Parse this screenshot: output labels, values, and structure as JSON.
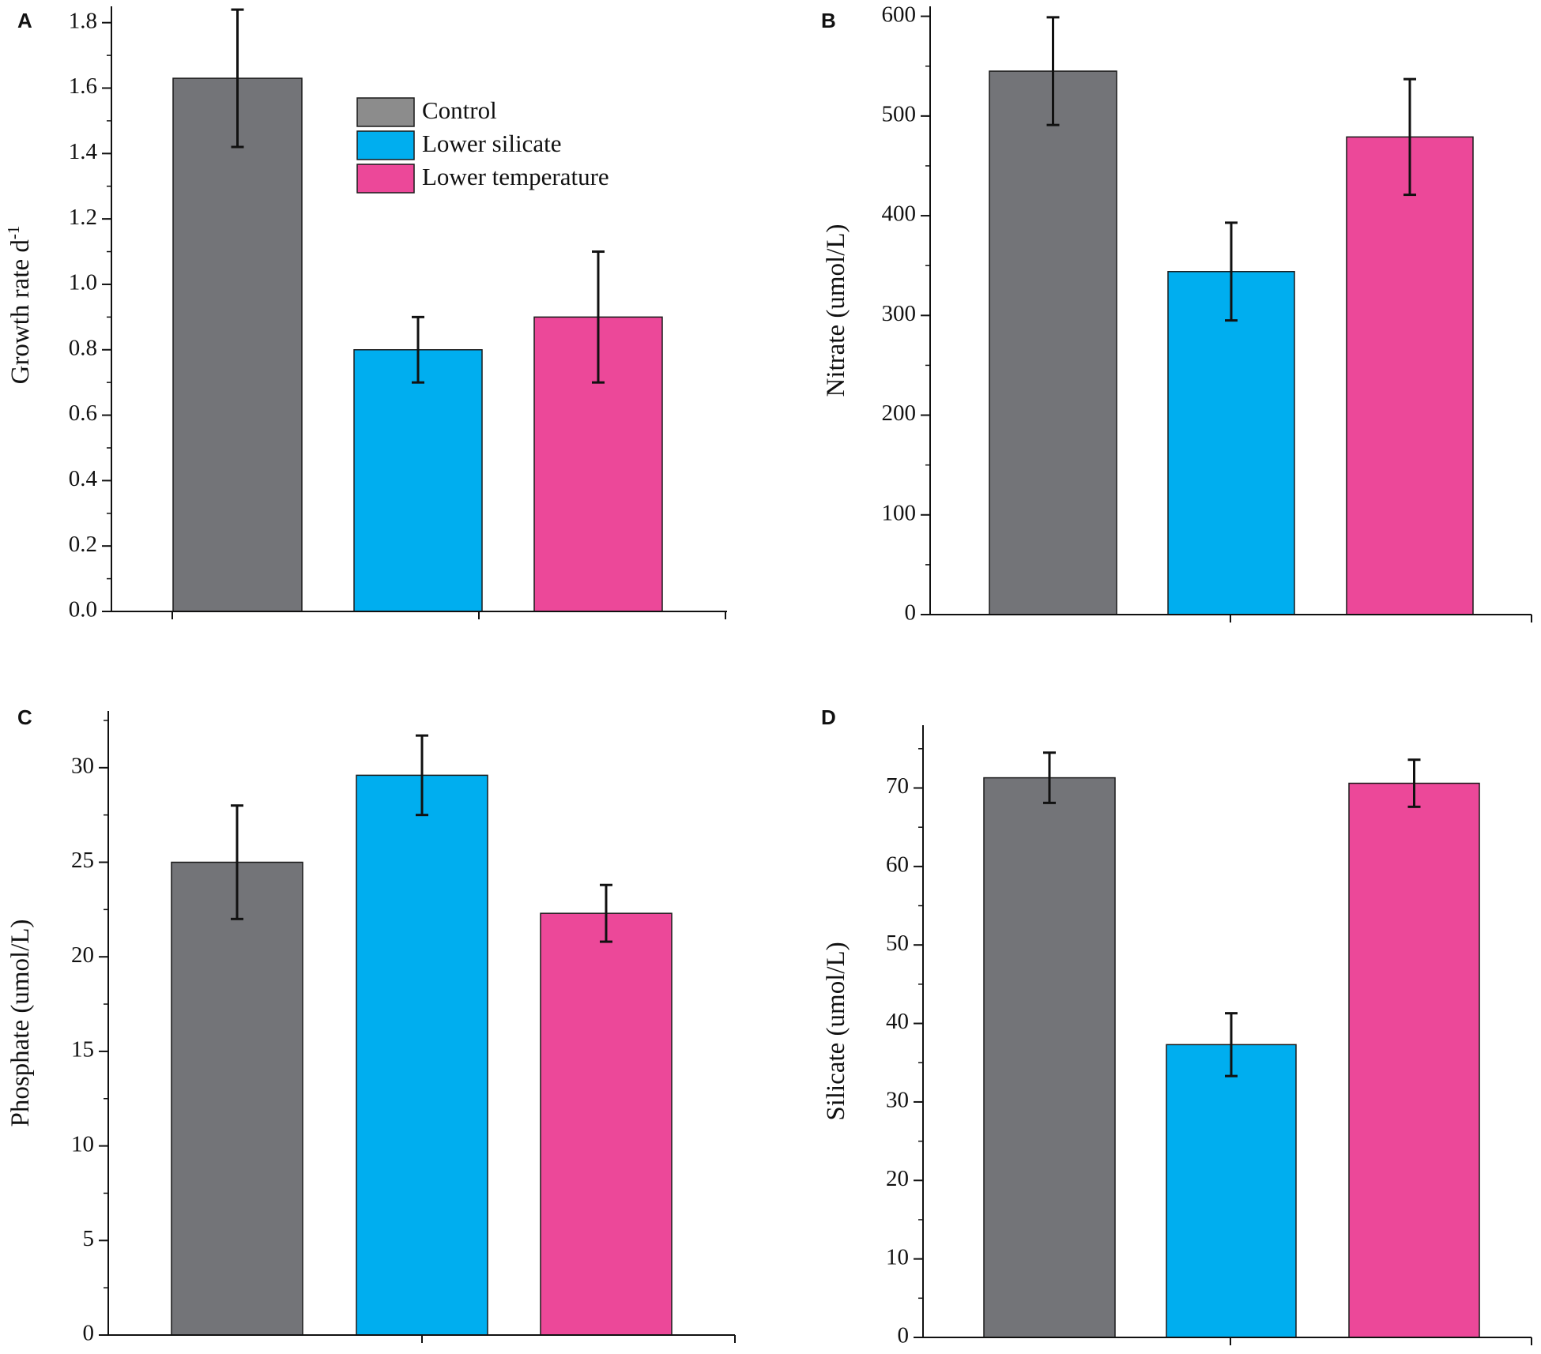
{
  "colors": {
    "control": "#737478",
    "lower_silicate": "#00aeef",
    "lower_temperature": "#ec4899",
    "legend_control": "#8c8c8c",
    "axis": "#111111"
  },
  "legend": {
    "entries": [
      "Control",
      "Lower silicate",
      "Lower temperature"
    ]
  },
  "chart_data": [
    {
      "panel": "A",
      "type": "bar",
      "ylabel": "Growth rate d",
      "ylabel_superscript": "-1",
      "ylim": [
        0,
        1.85
      ],
      "yticks": [
        0.0,
        0.2,
        0.4,
        0.6,
        0.8,
        1.0,
        1.2,
        1.4,
        1.6,
        1.8
      ],
      "tick_labels": [
        "0.0",
        "0.2",
        "0.4",
        "0.6",
        "0.8",
        "1.0",
        "1.2",
        "1.4",
        "1.6",
        "1.8"
      ],
      "minor_step": 0.1,
      "categories": [
        "Control",
        "Lower silicate",
        "Lower temperature"
      ],
      "values": [
        1.63,
        0.8,
        0.9
      ],
      "errors": [
        0.21,
        0.1,
        0.2
      ],
      "legend": true
    },
    {
      "panel": "B",
      "type": "bar",
      "ylabel": "Nitrate (umol/L)",
      "ylim": [
        0,
        610
      ],
      "yticks": [
        0,
        100,
        200,
        300,
        400,
        500,
        600
      ],
      "tick_labels": [
        "0",
        "100",
        "200",
        "300",
        "400",
        "500",
        "600"
      ],
      "minor_step": 50,
      "categories": [
        "Control",
        "Lower silicate",
        "Lower temperature"
      ],
      "values": [
        545,
        344,
        479
      ],
      "errors": [
        54,
        49,
        58
      ],
      "legend": false
    },
    {
      "panel": "C",
      "type": "bar",
      "ylabel": "Phosphate (umol/L)",
      "ylim": [
        0,
        33
      ],
      "yticks": [
        0,
        5,
        10,
        15,
        20,
        25,
        30
      ],
      "tick_labels": [
        "0",
        "5",
        "10",
        "15",
        "20",
        "25",
        "30"
      ],
      "minor_step": 2.5,
      "categories": [
        "Control",
        "Lower silicate",
        "Lower temperature"
      ],
      "values": [
        25.0,
        29.6,
        22.3
      ],
      "errors": [
        3.0,
        2.1,
        1.5
      ],
      "legend": false
    },
    {
      "panel": "D",
      "type": "bar",
      "ylabel": "Silicate (umol/L)",
      "ylim": [
        0,
        78
      ],
      "yticks": [
        0,
        10,
        20,
        30,
        40,
        50,
        60,
        70
      ],
      "tick_labels": [
        "0",
        "10",
        "20",
        "30",
        "40",
        "50",
        "60",
        "70"
      ],
      "minor_step": 5,
      "categories": [
        "Control",
        "Lower silicate",
        "Lower temperature"
      ],
      "values": [
        71.3,
        37.3,
        70.6
      ],
      "errors": [
        3.2,
        4.0,
        3.0
      ],
      "legend": false
    }
  ]
}
